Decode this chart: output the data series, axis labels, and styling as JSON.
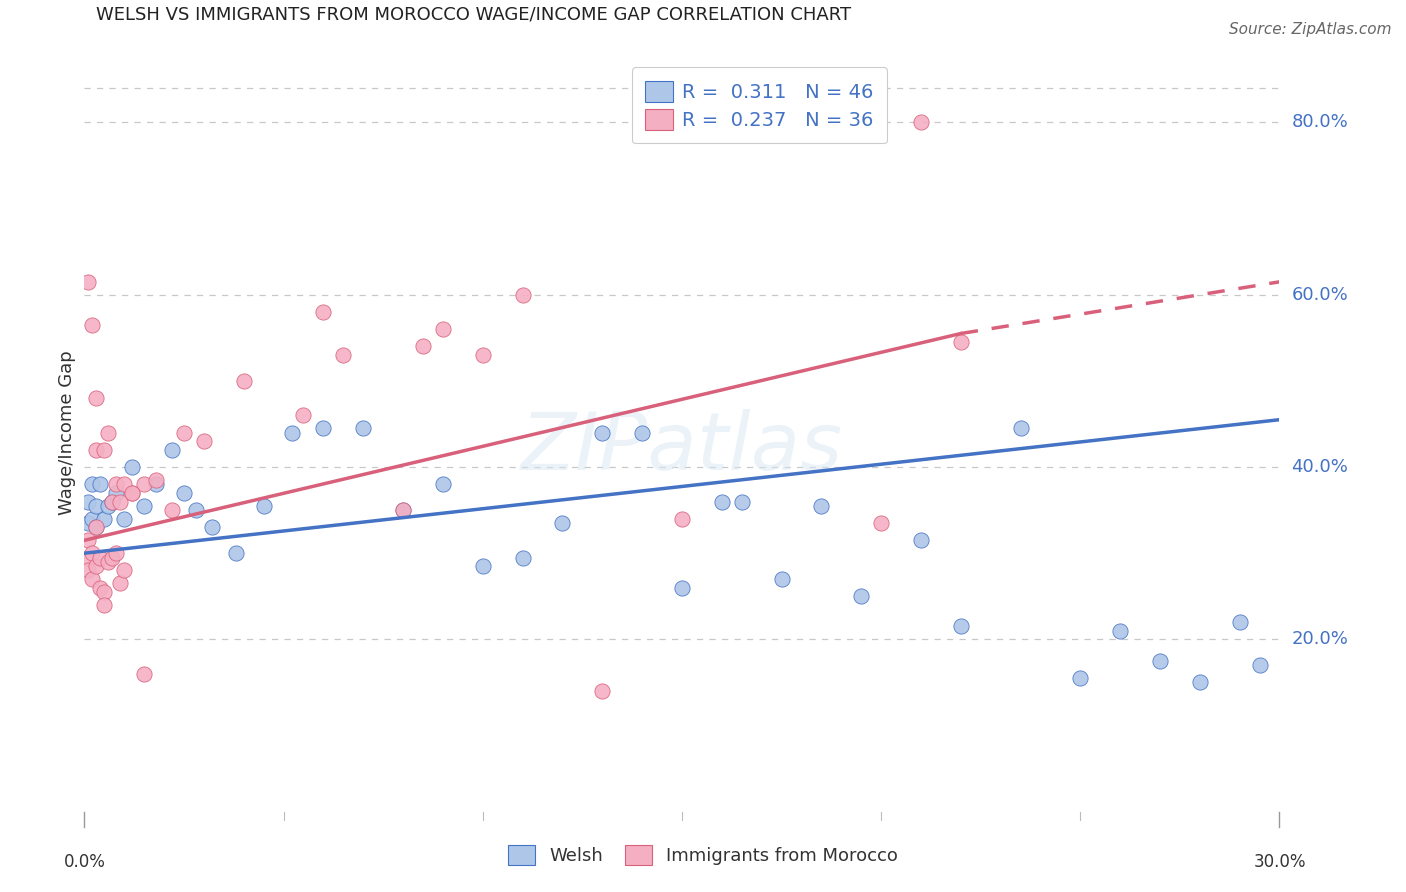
{
  "title": "WELSH VS IMMIGRANTS FROM MOROCCO WAGE/INCOME GAP CORRELATION CHART",
  "source": "Source: ZipAtlas.com",
  "ylabel": "Wage/Income Gap",
  "ytick_labels": [
    "80.0%",
    "60.0%",
    "40.0%",
    "20.0%"
  ],
  "ytick_values": [
    0.8,
    0.6,
    0.4,
    0.2
  ],
  "xmin": 0.0,
  "xmax": 0.3,
  "ymin": 0.0,
  "ymax": 0.88,
  "welsh_color": "#aec6e8",
  "morocco_color": "#f4afc3",
  "welsh_line_color": "#4472c4",
  "morocco_line_color": "#d9607a",
  "welsh_R": 0.311,
  "welsh_N": 46,
  "morocco_R": 0.237,
  "morocco_N": 36,
  "legend_label_welsh": "Welsh",
  "legend_label_morocco": "Immigrants from Morocco",
  "watermark": "ZIPatlas",
  "grid_color": "#c8c8c8",
  "background_color": "#ffffff",
  "welsh_x": [
    0.001,
    0.001,
    0.002,
    0.002,
    0.003,
    0.003,
    0.004,
    0.005,
    0.006,
    0.007,
    0.008,
    0.01,
    0.012,
    0.015,
    0.018,
    0.022,
    0.025,
    0.028,
    0.032,
    0.038,
    0.045,
    0.052,
    0.06,
    0.07,
    0.08,
    0.09,
    0.1,
    0.11,
    0.12,
    0.13,
    0.14,
    0.15,
    0.16,
    0.165,
    0.175,
    0.185,
    0.195,
    0.21,
    0.22,
    0.235,
    0.25,
    0.26,
    0.27,
    0.28,
    0.29,
    0.295
  ],
  "welsh_y": [
    0.335,
    0.36,
    0.34,
    0.38,
    0.33,
    0.355,
    0.38,
    0.34,
    0.355,
    0.36,
    0.37,
    0.34,
    0.4,
    0.355,
    0.38,
    0.42,
    0.37,
    0.35,
    0.33,
    0.3,
    0.355,
    0.44,
    0.445,
    0.445,
    0.35,
    0.38,
    0.285,
    0.295,
    0.335,
    0.44,
    0.44,
    0.26,
    0.36,
    0.36,
    0.27,
    0.355,
    0.25,
    0.315,
    0.215,
    0.445,
    0.155,
    0.21,
    0.175,
    0.15,
    0.22,
    0.17
  ],
  "morocco_x": [
    0.001,
    0.001,
    0.001,
    0.002,
    0.002,
    0.003,
    0.003,
    0.004,
    0.004,
    0.005,
    0.005,
    0.006,
    0.007,
    0.008,
    0.009,
    0.01,
    0.012,
    0.015,
    0.018,
    0.022,
    0.025,
    0.03,
    0.04,
    0.055,
    0.06,
    0.065,
    0.08,
    0.085,
    0.09,
    0.1,
    0.11,
    0.13,
    0.15,
    0.2,
    0.21,
    0.22
  ],
  "morocco_y": [
    0.315,
    0.295,
    0.28,
    0.3,
    0.27,
    0.33,
    0.285,
    0.295,
    0.26,
    0.255,
    0.24,
    0.29,
    0.295,
    0.3,
    0.265,
    0.28,
    0.37,
    0.38,
    0.385,
    0.35,
    0.44,
    0.43,
    0.5,
    0.46,
    0.58,
    0.53,
    0.35,
    0.54,
    0.56,
    0.53,
    0.6,
    0.14,
    0.34,
    0.335,
    0.8,
    0.545
  ],
  "morocco_high_x": [
    0.001,
    0.002,
    0.003,
    0.003,
    0.005,
    0.006,
    0.007,
    0.008,
    0.009,
    0.01,
    0.012,
    0.015
  ],
  "morocco_high_y": [
    0.615,
    0.565,
    0.48,
    0.42,
    0.42,
    0.44,
    0.36,
    0.38,
    0.36,
    0.38,
    0.37,
    0.16
  ]
}
